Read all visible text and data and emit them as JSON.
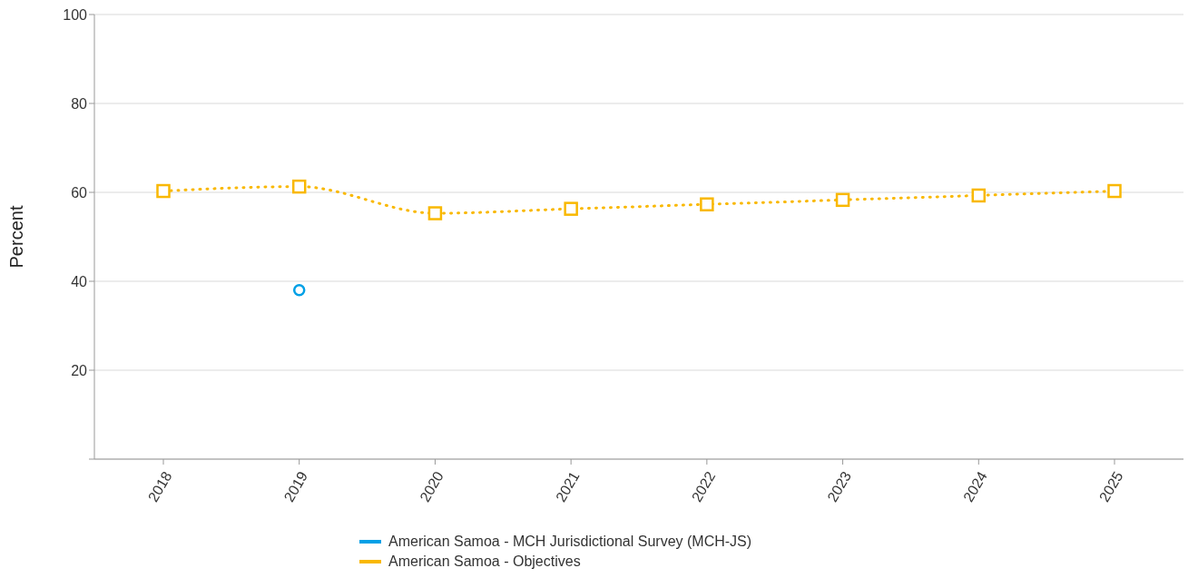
{
  "chart_data": {
    "type": "line",
    "ylabel": "Percent",
    "categories": [
      "2018",
      "2019",
      "2020",
      "2021",
      "2022",
      "2023",
      "2024",
      "2025"
    ],
    "series": [
      {
        "name": "American Samoa - MCH Jurisdictional Survey (MCH-JS)",
        "color": "#00a0e6",
        "values": [
          null,
          38,
          null,
          null,
          null,
          null,
          null,
          null
        ],
        "marker": "circle"
      },
      {
        "name": "American Samoa - Objectives",
        "color": "#f9b800",
        "values": [
          60.3,
          61.3,
          55.3,
          56.3,
          57.3,
          58.3,
          59.3,
          60.3
        ],
        "marker": "square",
        "line_style": "dotted"
      }
    ],
    "ylim": [
      0,
      100
    ],
    "yticks": [
      {
        "value": 0,
        "label": null
      },
      20,
      40,
      60,
      80,
      100
    ],
    "grid": "y",
    "legend": "bottom"
  }
}
